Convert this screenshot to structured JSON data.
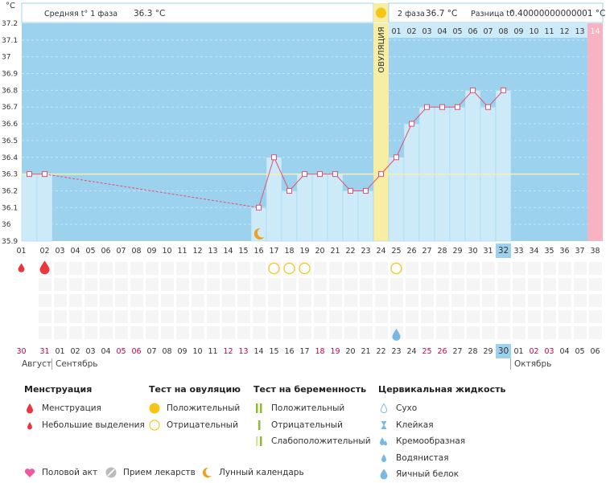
{
  "header": {
    "phase1_label": "Средняя t° 1 фаза",
    "phase1_value": "36.3 °C",
    "phase2_label": "2 фаза",
    "phase2_value": "36.7 °C",
    "diff_label": "Разница t°",
    "diff_value": "0.40000000000001 °C"
  },
  "chart_data": {
    "type": "line",
    "unit": "°C",
    "ylim": [
      35.9,
      37.2
    ],
    "yticks": [
      "35.9",
      "36",
      "36.1",
      "36.2",
      "36.3",
      "36.4",
      "36.5",
      "36.6",
      "36.7",
      "36.8",
      "36.9",
      "37",
      "37.1",
      "37.2"
    ],
    "cycle_days": [
      "01",
      "02",
      "03",
      "04",
      "05",
      "06",
      "07",
      "08",
      "09",
      "10",
      "11",
      "12",
      "13",
      "14",
      "15",
      "16",
      "17",
      "18",
      "19",
      "20",
      "21",
      "22",
      "23",
      "24",
      "25",
      "26",
      "27",
      "28",
      "29",
      "30",
      "31",
      "32",
      "33",
      "34",
      "35",
      "36",
      "37",
      "38"
    ],
    "calendar_dates": [
      "30",
      "31",
      "01",
      "02",
      "03",
      "04",
      "05",
      "06",
      "07",
      "08",
      "09",
      "10",
      "11",
      "12",
      "13",
      "14",
      "15",
      "16",
      "17",
      "18",
      "19",
      "20",
      "21",
      "22",
      "23",
      "24",
      "25",
      "26",
      "27",
      "28",
      "29",
      "30",
      "01",
      "02",
      "03",
      "04",
      "05",
      "06"
    ],
    "weekend_indices": [
      0,
      1,
      6,
      7,
      13,
      14,
      19,
      20,
      26,
      27,
      33,
      34
    ],
    "today_index": 31,
    "luteal_day_labels": [
      "01",
      "02",
      "03",
      "04",
      "05",
      "06",
      "07",
      "08",
      "09",
      "10",
      "11",
      "12",
      "13",
      "14"
    ],
    "months": [
      "Август",
      "Сентябрь",
      "Октябрь"
    ],
    "ovulation_label": "ОВУЛЯЦИЯ",
    "ovulation_day_index": 23,
    "coverline": 36.3,
    "series": [
      {
        "values": [
          36.3,
          36.3,
          null,
          null,
          null,
          null,
          null,
          null,
          null,
          null,
          null,
          null,
          null,
          null,
          null,
          36.1,
          36.4,
          36.2,
          36.3,
          36.3,
          36.3,
          36.2,
          36.2,
          36.3,
          36.4,
          36.6,
          36.7,
          36.7,
          36.7,
          36.8,
          36.7,
          36.8,
          null,
          null,
          null,
          null,
          null,
          null
        ]
      }
    ],
    "menstruation_days": [
      0,
      1
    ],
    "ovulation_test_negative_days": [
      16,
      17,
      18,
      24
    ],
    "egg_white_days": [
      24
    ],
    "lunar_day": 15
  },
  "legend": {
    "menstruation": {
      "title": "Менструация",
      "items": [
        "Менструация",
        "Небольшие выделения"
      ]
    },
    "ovulation_test": {
      "title": "Тест на овуляцию",
      "items": [
        "Положительный",
        "Отрицательный"
      ]
    },
    "pregnancy_test": {
      "title": "Тест на беременность",
      "items": [
        "Положительный",
        "Отрицательный",
        "Слабоположительный"
      ]
    },
    "cervical": {
      "title": "Цервикальная жидкость",
      "items": [
        "Сухо",
        "Клейкая",
        "Кремообразная",
        "Водянистая",
        "Яичный белок"
      ]
    },
    "other": [
      "Половой акт",
      "Прием лекарств",
      "Лунный календарь"
    ]
  },
  "colors": {
    "follicular_bg": "#9dd2ef",
    "bar_fill": "#cdeaf8",
    "ovulation": "#f7eda3",
    "tail": "#f7b3c2",
    "line": "#e05070",
    "menstruation": "#e8383d",
    "ovulation_test": "#f5c518",
    "pregnancy_test": "#8cbd2b",
    "cervical": "#7ab8e4",
    "intercourse": "#ee5aa0",
    "meds": "#bbbbbb",
    "moon": "#f0a020",
    "weekend": "#cc0044"
  }
}
